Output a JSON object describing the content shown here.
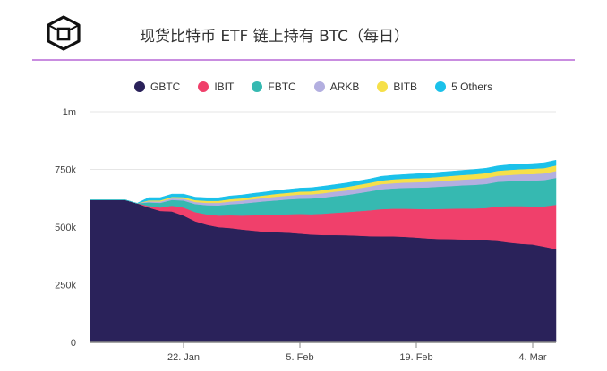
{
  "header": {
    "title": "现货比特币 ETF 链上持有 BTC（每日）",
    "logo_icon": "cube-logo-icon"
  },
  "colors": {
    "divider": "#c98de0"
  },
  "chart_data": {
    "type": "area",
    "stacked": true,
    "title": "",
    "xlabel": "",
    "ylabel": "",
    "ylim": [
      0,
      1000000
    ],
    "y_ticks": [
      {
        "value": 0,
        "label": "0"
      },
      {
        "value": 250000,
        "label": "250k"
      },
      {
        "value": 500000,
        "label": "500k"
      },
      {
        "value": 750000,
        "label": "750k"
      },
      {
        "value": 1000000,
        "label": "1m"
      }
    ],
    "x_ticks": [
      {
        "index": 8,
        "label": "22. Jan"
      },
      {
        "index": 18,
        "label": "5. Feb"
      },
      {
        "index": 28,
        "label": "19. Feb"
      },
      {
        "index": 38,
        "label": "4. Mar"
      }
    ],
    "legend_position": "top",
    "grid": true,
    "x": [
      "2024-01-11",
      "2024-01-12",
      "2024-01-13",
      "2024-01-14",
      "2024-01-15",
      "2024-01-16",
      "2024-01-17",
      "2024-01-18",
      "2024-01-19",
      "2024-01-22",
      "2024-01-23",
      "2024-01-24",
      "2024-01-25",
      "2024-01-26",
      "2024-01-29",
      "2024-01-30",
      "2024-01-31",
      "2024-02-01",
      "2024-02-02",
      "2024-02-05",
      "2024-02-06",
      "2024-02-07",
      "2024-02-08",
      "2024-02-09",
      "2024-02-12",
      "2024-02-13",
      "2024-02-14",
      "2024-02-15",
      "2024-02-16",
      "2024-02-19",
      "2024-02-20",
      "2024-02-21",
      "2024-02-22",
      "2024-02-23",
      "2024-02-26",
      "2024-02-27",
      "2024-02-28",
      "2024-02-29",
      "2024-03-01",
      "2024-03-04",
      "2024-03-05"
    ],
    "series": [
      {
        "name": "GBTC",
        "color": "#2a225a",
        "values": [
          618000,
          618000,
          618000,
          618000,
          603000,
          585000,
          570000,
          568000,
          550000,
          525000,
          510000,
          500000,
          496000,
          490000,
          485000,
          480000,
          478000,
          476000,
          472000,
          468000,
          466000,
          466000,
          465000,
          463000,
          461000,
          460000,
          460000,
          458000,
          455000,
          451000,
          449000,
          448000,
          447000,
          445000,
          443000,
          440000,
          433000,
          428000,
          425000,
          415000,
          405000
        ]
      },
      {
        "name": "IBIT",
        "color": "#f0406b",
        "values": [
          0,
          0,
          0,
          0,
          0,
          7000,
          15000,
          25000,
          35000,
          40000,
          45000,
          50000,
          55000,
          60000,
          66000,
          72000,
          76000,
          80000,
          85000,
          88000,
          92000,
          96000,
          100000,
          106000,
          112000,
          118000,
          120000,
          122000,
          124000,
          127000,
          130000,
          132000,
          134000,
          136000,
          140000,
          150000,
          158000,
          163000,
          165000,
          175000,
          192000
        ]
      },
      {
        "name": "FBTC",
        "color": "#36b9b1",
        "values": [
          0,
          0,
          0,
          0,
          0,
          15000,
          20000,
          25000,
          30000,
          35000,
          40000,
          44000,
          48000,
          52000,
          56000,
          60000,
          62000,
          64000,
          66000,
          68000,
          70000,
          72000,
          74000,
          78000,
          82000,
          86000,
          88000,
          90000,
          92000,
          94000,
          96000,
          98000,
          100000,
          102000,
          104000,
          106000,
          108000,
          110000,
          112000,
          114000,
          116000
        ]
      },
      {
        "name": "ARKB",
        "color": "#b3afe0",
        "values": [
          0,
          0,
          0,
          0,
          0,
          5000,
          6000,
          7000,
          8000,
          9000,
          10000,
          11000,
          12000,
          13000,
          14000,
          15000,
          16000,
          17000,
          18000,
          18000,
          19000,
          20000,
          20000,
          21000,
          21000,
          22000,
          22000,
          23000,
          23000,
          24000,
          24000,
          25000,
          25000,
          26000,
          26000,
          27000,
          27000,
          28000,
          28000,
          29000,
          30000
        ]
      },
      {
        "name": "BITB",
        "color": "#f6e049",
        "values": [
          0,
          0,
          0,
          0,
          0,
          4000,
          5000,
          6000,
          7000,
          8000,
          9000,
          9000,
          10000,
          10000,
          11000,
          11000,
          12000,
          12000,
          13000,
          13000,
          14000,
          14000,
          15000,
          15000,
          16000,
          16000,
          17000,
          17000,
          18000,
          18000,
          19000,
          19000,
          20000,
          20000,
          21000,
          21000,
          22000,
          22000,
          23000,
          23000,
          24000
        ]
      },
      {
        "name": "5 Others",
        "color": "#1bc1ea",
        "values": [
          0,
          0,
          0,
          0,
          0,
          12000,
          12000,
          12000,
          13000,
          13000,
          13000,
          13000,
          14000,
          14000,
          14000,
          14000,
          15000,
          15000,
          15000,
          16000,
          16000,
          16000,
          17000,
          17000,
          17000,
          18000,
          18000,
          18000,
          19000,
          19000,
          20000,
          20000,
          20000,
          21000,
          21000,
          21000,
          22000,
          22000,
          22000,
          23000,
          23000
        ]
      }
    ]
  }
}
